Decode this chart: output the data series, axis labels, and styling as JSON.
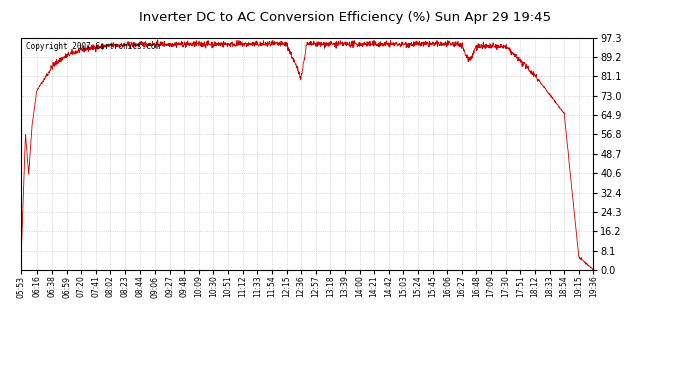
{
  "title": "Inverter DC to AC Conversion Efficiency (%) Sun Apr 29 19:45",
  "copyright_text": "Copyright 2007 Cartronics.com",
  "line_color": "#cc0000",
  "bg_color": "#ffffff",
  "plot_bg_color": "#ffffff",
  "grid_color": "#bbbbbb",
  "ylim": [
    0.0,
    97.3
  ],
  "yticks": [
    0.0,
    8.1,
    16.2,
    24.3,
    32.4,
    40.6,
    48.7,
    56.8,
    64.9,
    73.0,
    81.1,
    89.2,
    97.3
  ],
  "xtick_labels": [
    "05:53",
    "06:16",
    "06:38",
    "06:59",
    "07:20",
    "07:41",
    "08:02",
    "08:23",
    "08:44",
    "09:06",
    "09:27",
    "09:48",
    "10:09",
    "10:30",
    "10:51",
    "11:12",
    "11:33",
    "11:54",
    "12:15",
    "12:36",
    "12:57",
    "13:18",
    "13:39",
    "14:00",
    "14:21",
    "14:42",
    "15:03",
    "15:24",
    "15:45",
    "16:06",
    "16:27",
    "16:48",
    "17:09",
    "17:30",
    "17:51",
    "18:12",
    "18:33",
    "18:54",
    "19:15",
    "19:36"
  ]
}
